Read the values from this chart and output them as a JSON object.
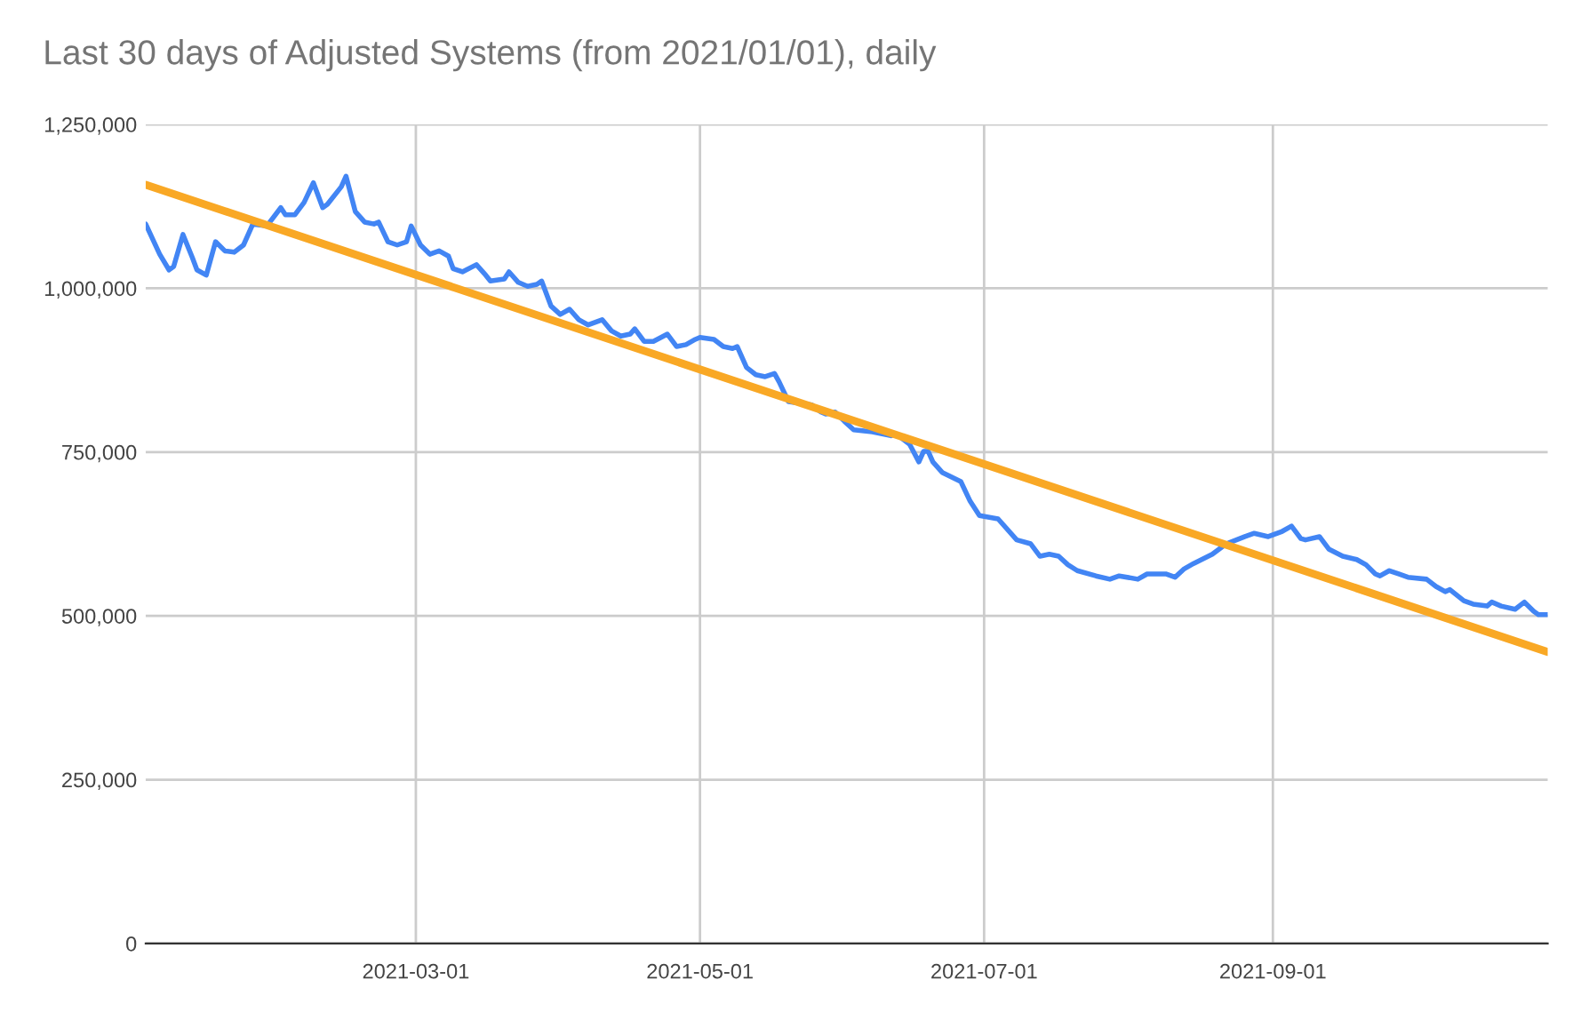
{
  "chart_data": {
    "type": "line",
    "title": "Last 30 days of Adjusted Systems (from 2021/01/01), daily",
    "series": [
      {
        "color": "#4285f4",
        "x": [
          "2021-01-02",
          "2021-01-05",
          "2021-01-07",
          "2021-01-08",
          "2021-01-10",
          "2021-01-12",
          "2021-01-13",
          "2021-01-15",
          "2021-01-17",
          "2021-01-19",
          "2021-01-21",
          "2021-01-23",
          "2021-01-25",
          "2021-01-28",
          "2021-01-31",
          "2021-02-01",
          "2021-02-03",
          "2021-02-05",
          "2021-02-07",
          "2021-02-09",
          "2021-02-10",
          "2021-02-13",
          "2021-02-14",
          "2021-02-16",
          "2021-02-18",
          "2021-02-20",
          "2021-02-21",
          "2021-02-23",
          "2021-02-25",
          "2021-02-27",
          "2021-02-28",
          "2021-03-02",
          "2021-03-04",
          "2021-03-06",
          "2021-03-08",
          "2021-03-09",
          "2021-03-11",
          "2021-03-14",
          "2021-03-16",
          "2021-03-17",
          "2021-03-20",
          "2021-03-21",
          "2021-03-23",
          "2021-03-25",
          "2021-03-27",
          "2021-03-28",
          "2021-03-30",
          "2021-04-01",
          "2021-04-03",
          "2021-04-05",
          "2021-04-07",
          "2021-04-10",
          "2021-04-12",
          "2021-04-14",
          "2021-04-16",
          "2021-04-17",
          "2021-04-19",
          "2021-04-21",
          "2021-04-24",
          "2021-04-26",
          "2021-04-28",
          "2021-04-30",
          "2021-05-01",
          "2021-05-04",
          "2021-05-06",
          "2021-05-08",
          "2021-05-09",
          "2021-05-11",
          "2021-05-13",
          "2021-05-15",
          "2021-05-17",
          "2021-05-18",
          "2021-05-20",
          "2021-05-23",
          "2021-05-25",
          "2021-05-27",
          "2021-05-28",
          "2021-05-30",
          "2021-06-01",
          "2021-06-03",
          "2021-06-07",
          "2021-06-11",
          "2021-06-12",
          "2021-06-15",
          "2021-06-17",
          "2021-06-18",
          "2021-06-19",
          "2021-06-20",
          "2021-06-22",
          "2021-06-26",
          "2021-06-28",
          "2021-06-30",
          "2021-07-04",
          "2021-07-08",
          "2021-07-11",
          "2021-07-13",
          "2021-07-15",
          "2021-07-17",
          "2021-07-19",
          "2021-07-21",
          "2021-07-25",
          "2021-07-28",
          "2021-07-30",
          "2021-08-03",
          "2021-08-05",
          "2021-08-09",
          "2021-08-11",
          "2021-08-13",
          "2021-08-15",
          "2021-08-19",
          "2021-08-22",
          "2021-08-26",
          "2021-08-28",
          "2021-08-31",
          "2021-09-03",
          "2021-09-05",
          "2021-09-07",
          "2021-09-08",
          "2021-09-11",
          "2021-09-13",
          "2021-09-16",
          "2021-09-19",
          "2021-09-21",
          "2021-09-23",
          "2021-09-24",
          "2021-09-26",
          "2021-09-28",
          "2021-09-30",
          "2021-10-04",
          "2021-10-06",
          "2021-10-08",
          "2021-10-09",
          "2021-10-12",
          "2021-10-14",
          "2021-10-17",
          "2021-10-18",
          "2021-10-20",
          "2021-10-23",
          "2021-10-25",
          "2021-10-27",
          "2021-10-28",
          "2021-10-30"
        ],
        "values": [
          1098000,
          1052000,
          1028000,
          1033000,
          1082000,
          1047000,
          1028000,
          1020000,
          1071000,
          1057000,
          1055000,
          1066000,
          1098000,
          1095000,
          1123000,
          1112000,
          1112000,
          1131000,
          1161000,
          1123000,
          1128000,
          1155000,
          1171000,
          1117000,
          1101000,
          1098000,
          1101000,
          1071000,
          1066000,
          1071000,
          1095000,
          1066000,
          1052000,
          1057000,
          1049000,
          1030000,
          1025000,
          1036000,
          1020000,
          1011000,
          1014000,
          1025000,
          1009000,
          1003000,
          1006000,
          1011000,
          973000,
          960000,
          968000,
          952000,
          944000,
          952000,
          935000,
          927000,
          930000,
          938000,
          919000,
          919000,
          930000,
          911000,
          914000,
          922000,
          925000,
          922000,
          911000,
          908000,
          911000,
          879000,
          868000,
          865000,
          870000,
          857000,
          827000,
          824000,
          822000,
          811000,
          808000,
          811000,
          797000,
          784000,
          781000,
          775000,
          778000,
          762000,
          735000,
          751000,
          751000,
          735000,
          719000,
          705000,
          675000,
          653000,
          648000,
          616000,
          610000,
          591000,
          594000,
          591000,
          578000,
          569000,
          561000,
          556000,
          561000,
          556000,
          564000,
          564000,
          559000,
          572000,
          580000,
          594000,
          610000,
          621000,
          626000,
          621000,
          629000,
          637000,
          618000,
          616000,
          621000,
          602000,
          591000,
          586000,
          578000,
          564000,
          561000,
          569000,
          564000,
          559000,
          556000,
          545000,
          537000,
          540000,
          523000,
          518000,
          515000,
          521000,
          515000,
          510000,
          521000,
          507000,
          502000,
          502000
        ]
      },
      {
        "color": "#f9a825",
        "x": [
          "2021-01-02",
          "2021-10-30"
        ],
        "values": [
          1158000,
          445000
        ]
      }
    ],
    "xlim": [
      "2021-01-02",
      "2021-10-30"
    ],
    "xticks": [
      "2021-03-01",
      "2021-05-01",
      "2021-07-01",
      "2021-09-01"
    ],
    "ylim": [
      0,
      1250000
    ],
    "yticks": [
      0,
      {
        "value": 250000,
        "label": "250,000"
      },
      {
        "value": 500000,
        "label": "500,000"
      },
      {
        "value": 750000,
        "label": "750,000"
      },
      {
        "value": 1000000,
        "label": "1,000,000"
      },
      {
        "value": 1250000,
        "label": "1,250,000"
      }
    ],
    "grid": true,
    "legend": false,
    "marker": "none",
    "line_style": "solid"
  }
}
